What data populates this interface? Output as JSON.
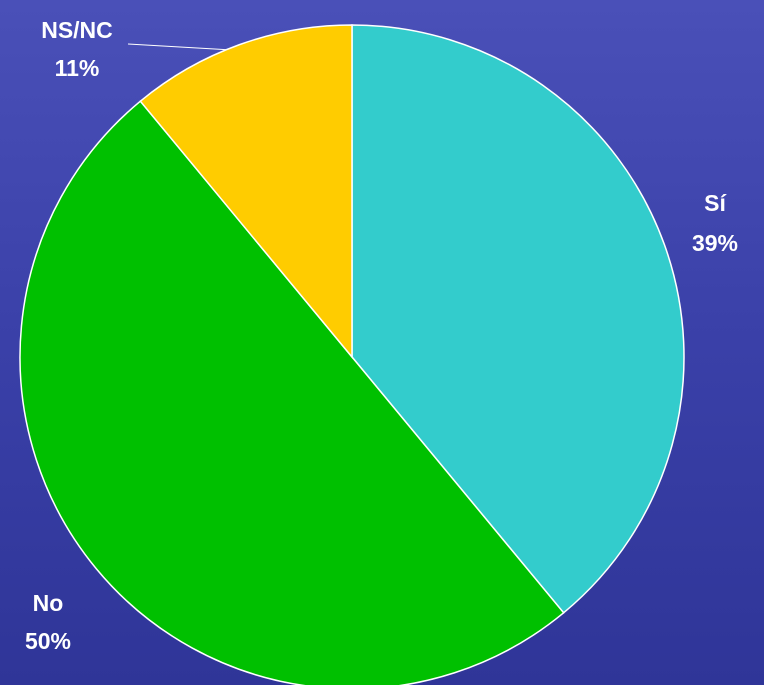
{
  "chart_data": {
    "type": "pie",
    "categories": [
      "Sí",
      "No",
      "NS/NC"
    ],
    "values": [
      39,
      50,
      11
    ],
    "value_labels": [
      "39%",
      "50%",
      "11%"
    ],
    "colors": [
      "#33cccc",
      "#00c000",
      "#ffcc00"
    ]
  }
}
